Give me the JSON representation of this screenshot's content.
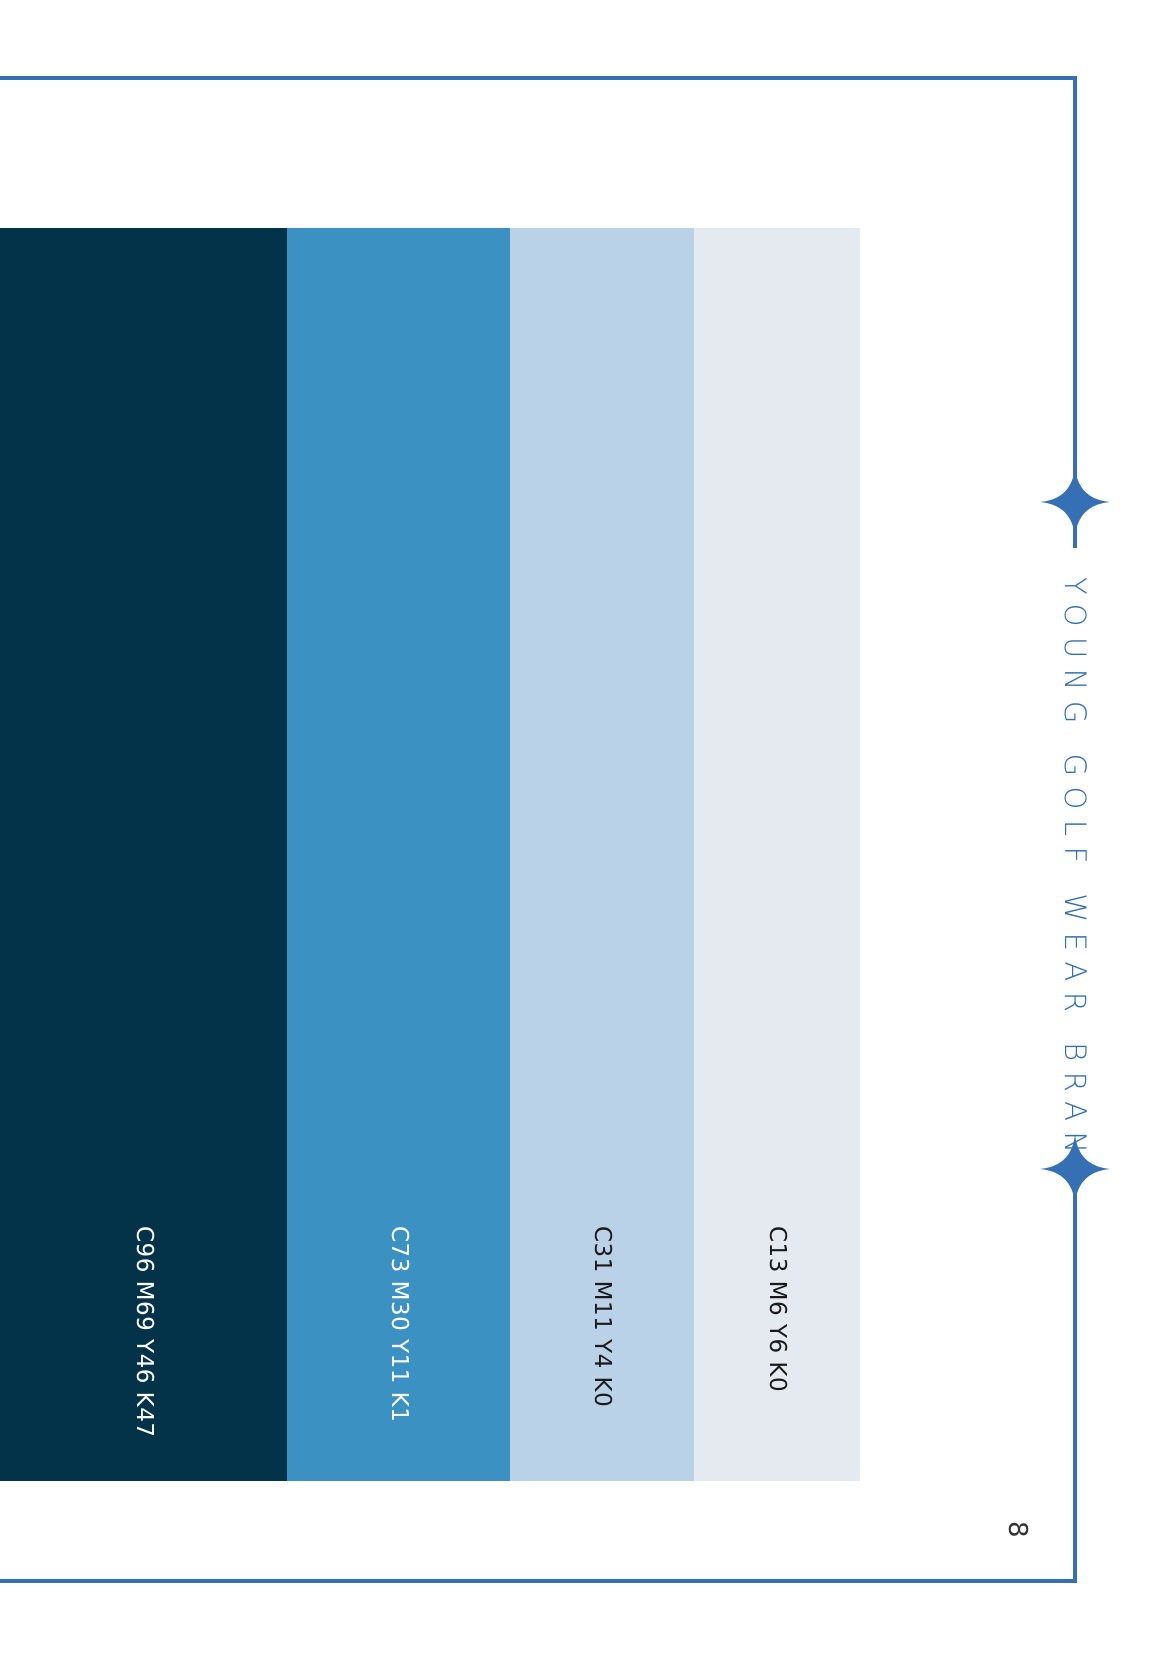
{
  "brand": {
    "tagline": "YOUNG GOLF WEAR BRAND",
    "accent_color": "#3470b3"
  },
  "swatches": [
    {
      "name": "navy",
      "color": "#033348",
      "cmyk": "C96 M69 Y46 K47",
      "text_color": "#ffffff"
    },
    {
      "name": "blue",
      "color": "#3c91c3",
      "cmyk": "C73 M30 Y11 K1",
      "text_color": "#ffffff"
    },
    {
      "name": "light-blue",
      "color": "#bad2e8",
      "cmyk": "C31 M11 Y4 K0",
      "text_color": "#1a1a1a"
    },
    {
      "name": "pale-gray",
      "color": "#e4eaef",
      "cmyk": "C13 M6 Y6 K0",
      "text_color": "#1a1a1a"
    }
  ],
  "page": {
    "number": "8"
  }
}
